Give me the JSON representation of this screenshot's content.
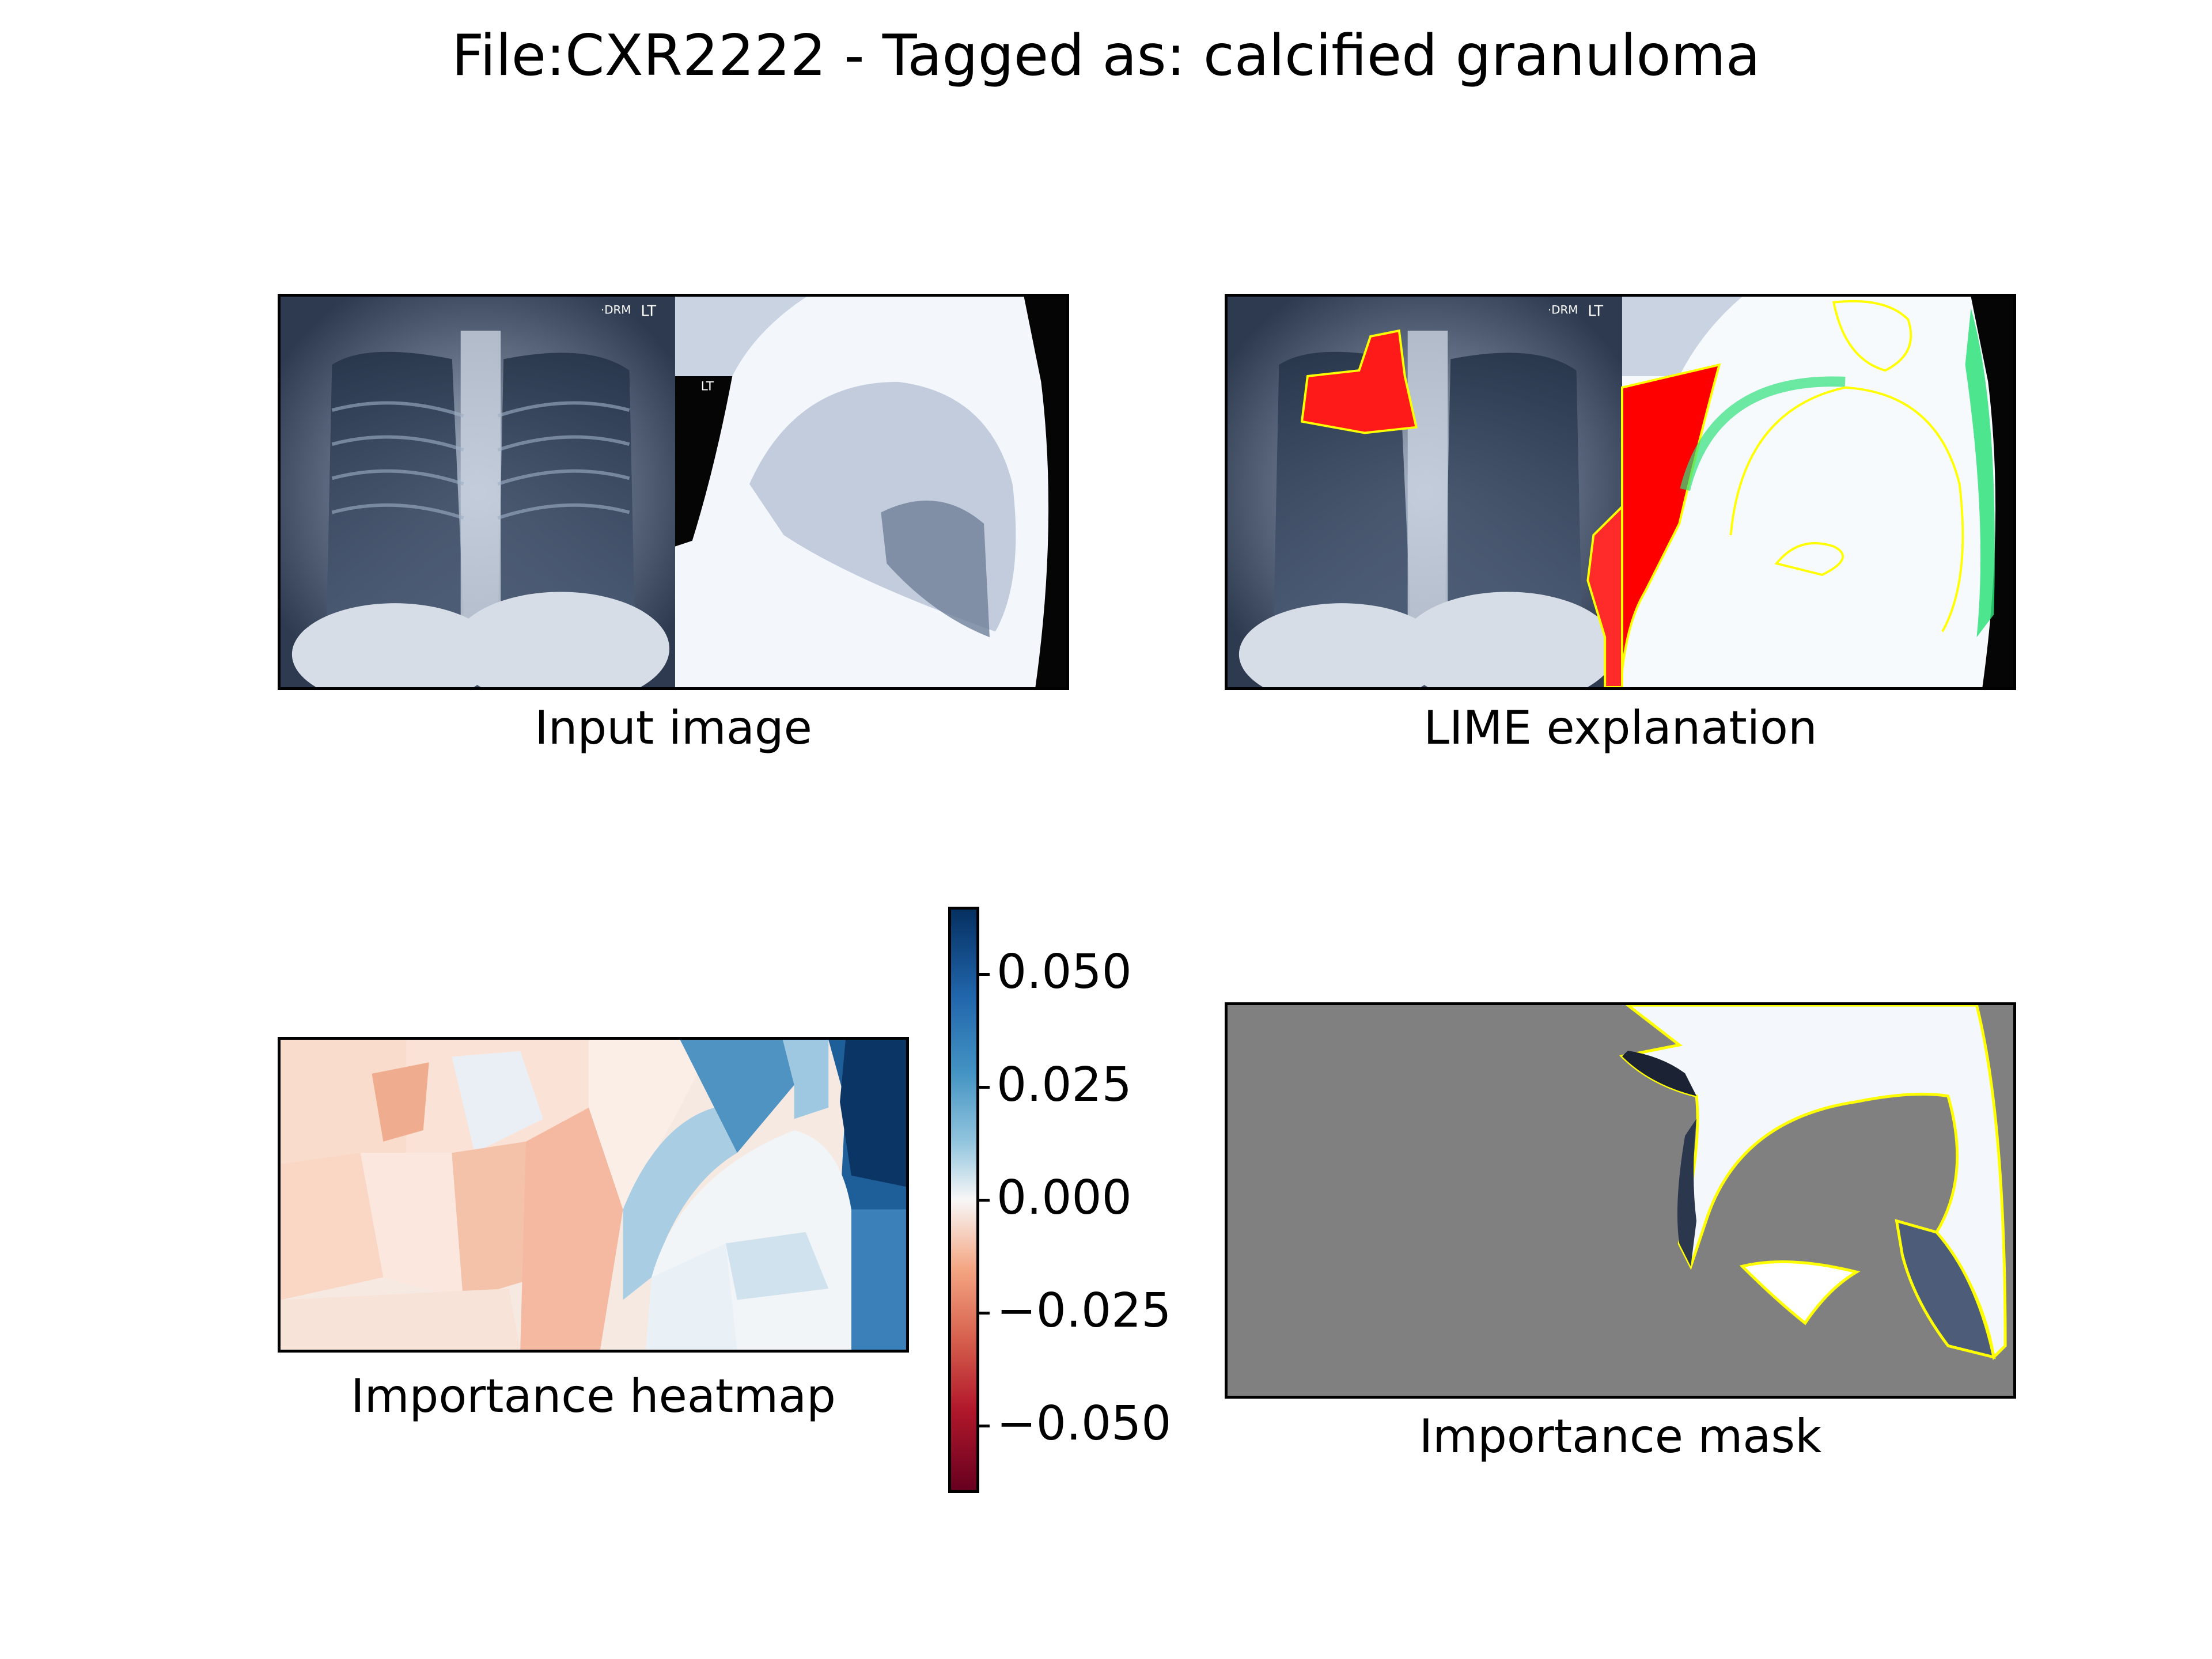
{
  "title": "File:CXR2222 - Tagged as: calcified granuloma",
  "panels": {
    "input": {
      "caption": "Input image"
    },
    "lime": {
      "caption": "LIME explanation"
    },
    "heatmap": {
      "caption": "Importance heatmap"
    },
    "mask": {
      "caption": "Importance mask"
    }
  },
  "xray_annotations": {
    "marker_top": "·DRM",
    "lt": "LT"
  },
  "chart_data": {
    "type": "heatmap",
    "colormap": "RdBu",
    "colorbar": {
      "vmin": -0.065,
      "vmax": 0.065,
      "ticks": [
        0.05,
        0.025,
        0.0,
        -0.025,
        -0.05
      ],
      "tick_labels": [
        "0.050",
        "0.025",
        "0.000",
        "−0.025",
        "−0.050"
      ]
    },
    "positive_color": "#ff0000",
    "boundary_color": "#ffff00",
    "mask_background": "#808080"
  }
}
